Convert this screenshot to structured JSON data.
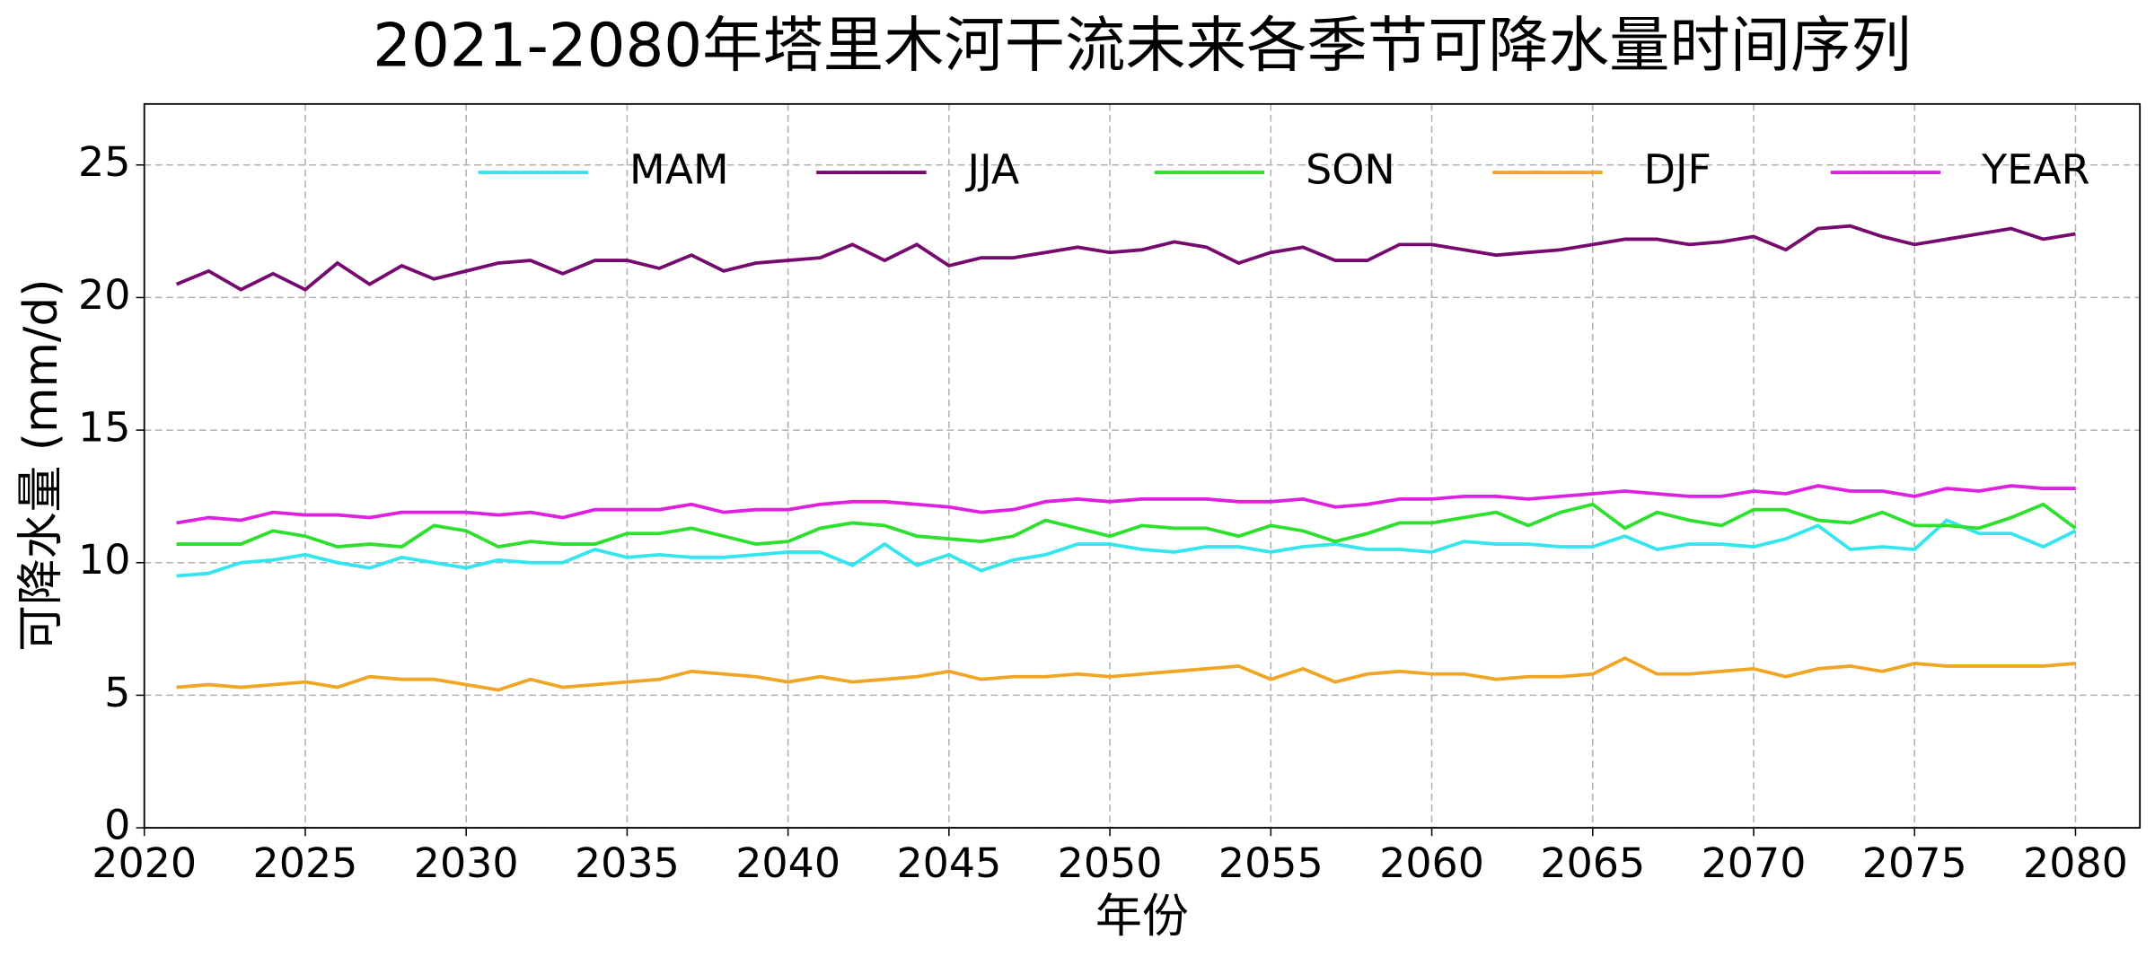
{
  "chart_data": {
    "type": "line",
    "title": "2021-2080年塔里木河干流未来各季节可降水量时间序列",
    "x_label": "年份",
    "y_label": "可降水量 (mm/d)",
    "x": [
      2021,
      2022,
      2023,
      2024,
      2025,
      2026,
      2027,
      2028,
      2029,
      2030,
      2031,
      2032,
      2033,
      2034,
      2035,
      2036,
      2037,
      2038,
      2039,
      2040,
      2041,
      2042,
      2043,
      2044,
      2045,
      2046,
      2047,
      2048,
      2049,
      2050,
      2051,
      2052,
      2053,
      2054,
      2055,
      2056,
      2057,
      2058,
      2059,
      2060,
      2061,
      2062,
      2063,
      2064,
      2065,
      2066,
      2067,
      2068,
      2069,
      2070,
      2071,
      2072,
      2073,
      2074,
      2075,
      2076,
      2077,
      2078,
      2079,
      2080
    ],
    "series": [
      {
        "name": "MAM",
        "color": "#33e6ee",
        "values": [
          9.5,
          9.6,
          10.0,
          10.1,
          10.3,
          10.0,
          9.8,
          10.2,
          10.0,
          9.8,
          10.1,
          10.0,
          10.0,
          10.5,
          10.2,
          10.3,
          10.2,
          10.2,
          10.3,
          10.4,
          10.4,
          9.9,
          10.7,
          9.9,
          10.3,
          9.7,
          10.1,
          10.3,
          10.7,
          10.7,
          10.5,
          10.4,
          10.6,
          10.6,
          10.4,
          10.6,
          10.7,
          10.5,
          10.5,
          10.4,
          10.8,
          10.7,
          10.7,
          10.6,
          10.6,
          11.0,
          10.5,
          10.7,
          10.7,
          10.6,
          10.9,
          11.4,
          10.5,
          10.6,
          10.5,
          11.6,
          11.1,
          11.1,
          10.6,
          11.2
        ]
      },
      {
        "name": "JJA",
        "color": "#760a6e",
        "values": [
          20.5,
          21.0,
          20.3,
          20.9,
          20.3,
          21.3,
          20.5,
          21.2,
          20.7,
          21.0,
          21.3,
          21.4,
          20.9,
          21.4,
          21.4,
          21.1,
          21.6,
          21.0,
          21.3,
          21.4,
          21.5,
          22.0,
          21.4,
          22.0,
          21.2,
          21.5,
          21.5,
          21.7,
          21.9,
          21.7,
          21.8,
          22.1,
          21.9,
          21.3,
          21.7,
          21.9,
          21.4,
          21.4,
          22.0,
          22.0,
          21.8,
          21.6,
          21.7,
          21.8,
          22.0,
          22.2,
          22.2,
          22.0,
          22.1,
          22.3,
          21.8,
          22.6,
          22.7,
          22.3,
          22.0,
          22.2,
          22.4,
          22.6,
          22.2,
          22.4
        ]
      },
      {
        "name": "SON",
        "color": "#2ee02e",
        "values": [
          10.7,
          10.7,
          10.7,
          11.2,
          11.0,
          10.6,
          10.7,
          10.6,
          11.4,
          11.2,
          10.6,
          10.8,
          10.7,
          10.7,
          11.1,
          11.1,
          11.3,
          11.0,
          10.7,
          10.8,
          11.3,
          11.5,
          11.4,
          11.0,
          10.9,
          10.8,
          11.0,
          11.6,
          11.3,
          11.0,
          11.4,
          11.3,
          11.3,
          11.0,
          11.4,
          11.2,
          10.8,
          11.1,
          11.5,
          11.5,
          11.7,
          11.9,
          11.4,
          11.9,
          12.2,
          11.3,
          11.9,
          11.6,
          11.4,
          12.0,
          12.0,
          11.6,
          11.5,
          11.9,
          11.4,
          11.4,
          11.3,
          11.7,
          12.2,
          11.3
        ]
      },
      {
        "name": "DJF",
        "color": "#f0a624",
        "values": [
          5.3,
          5.4,
          5.3,
          5.4,
          5.5,
          5.3,
          5.7,
          5.6,
          5.6,
          5.4,
          5.2,
          5.6,
          5.3,
          5.4,
          5.5,
          5.6,
          5.9,
          5.8,
          5.7,
          5.5,
          5.7,
          5.5,
          5.6,
          5.7,
          5.9,
          5.6,
          5.7,
          5.7,
          5.8,
          5.7,
          5.8,
          5.9,
          6.0,
          6.1,
          5.6,
          6.0,
          5.5,
          5.8,
          5.9,
          5.8,
          5.8,
          5.6,
          5.7,
          5.7,
          5.8,
          6.4,
          5.8,
          5.8,
          5.9,
          6.0,
          5.7,
          6.0,
          6.1,
          5.9,
          6.2,
          6.1,
          6.1,
          6.1,
          6.1,
          6.2
        ]
      },
      {
        "name": "YEAR",
        "color": "#e020e0",
        "values": [
          11.5,
          11.7,
          11.6,
          11.9,
          11.8,
          11.8,
          11.7,
          11.9,
          11.9,
          11.9,
          11.8,
          11.9,
          11.7,
          12.0,
          12.0,
          12.0,
          12.2,
          11.9,
          12.0,
          12.0,
          12.2,
          12.3,
          12.3,
          12.2,
          12.1,
          11.9,
          12.0,
          12.3,
          12.4,
          12.3,
          12.4,
          12.4,
          12.4,
          12.3,
          12.3,
          12.4,
          12.1,
          12.2,
          12.4,
          12.4,
          12.5,
          12.5,
          12.4,
          12.5,
          12.6,
          12.7,
          12.6,
          12.5,
          12.5,
          12.7,
          12.6,
          12.9,
          12.7,
          12.7,
          12.5,
          12.8,
          12.7,
          12.9,
          12.8,
          12.8
        ]
      }
    ],
    "xlim": [
      2020,
      2082
    ],
    "xticks": [
      2020,
      2025,
      2030,
      2035,
      2040,
      2045,
      2050,
      2055,
      2060,
      2065,
      2070,
      2075,
      2080
    ],
    "ylim": [
      0,
      27.3
    ],
    "yticks": [
      0,
      5,
      10,
      15,
      20,
      25
    ],
    "grid": true,
    "legend": "upper right"
  }
}
